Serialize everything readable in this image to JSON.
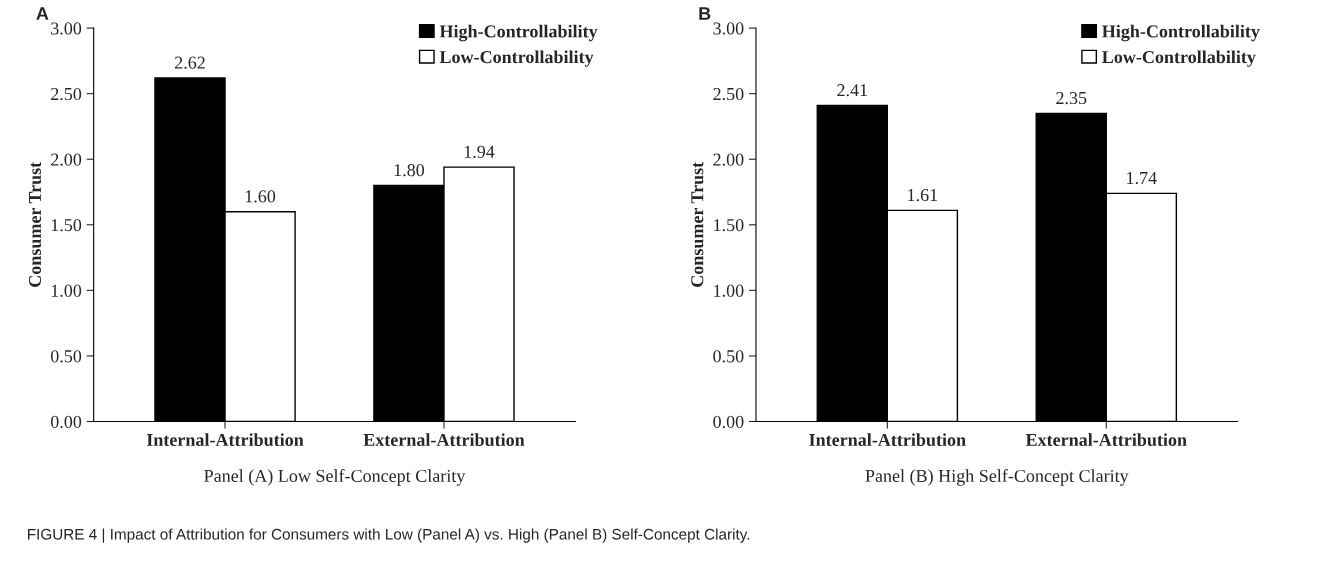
{
  "chart_data": [
    {
      "type": "bar",
      "title": "A",
      "xlabel": "Panel (A) Low Self-Concept Clarity",
      "ylabel": "Consumer Trust",
      "categories": [
        "Internal-Attribution",
        "External-Attribution"
      ],
      "series": [
        {
          "name": "High-Controllability",
          "color": "#000000",
          "values": [
            2.62,
            1.8
          ],
          "value_labels": [
            "2.62",
            "1.80"
          ]
        },
        {
          "name": "Low-Controllability",
          "color": "#ffffff",
          "values": [
            1.6,
            1.94
          ],
          "value_labels": [
            "1.60",
            "1.94"
          ]
        }
      ],
      "ylim": [
        0,
        3
      ],
      "yticks": [
        {
          "value": 0,
          "label": "0.00"
        },
        {
          "value": 0.5,
          "label": "0.50"
        },
        {
          "value": 1,
          "label": "1.00"
        },
        {
          "value": 1.5,
          "label": "1.50"
        },
        {
          "value": 2,
          "label": "2.00"
        },
        {
          "value": 2.5,
          "label": "2.50"
        },
        {
          "value": 3,
          "label": "3.00"
        }
      ],
      "legend": "top right",
      "grid": false,
      "annotations": [
        "FIGURE 4 | Impact of Attribution for Consumers with Low (Panel A) vs. High (Panel B) Self-Concept Clarity."
      ]
    },
    {
      "type": "bar",
      "title": "B",
      "xlabel": "Panel (B) High Self-Concept Clarity",
      "ylabel": "Consumer Trust",
      "categories": [
        "Internal-Attribution",
        "External-Attribution"
      ],
      "series": [
        {
          "name": "High-Controllability",
          "color": "#000000",
          "values": [
            2.41,
            2.35
          ],
          "value_labels": [
            "2.41",
            "2.35"
          ]
        },
        {
          "name": "Low-Controllability",
          "color": "#ffffff",
          "values": [
            1.61,
            1.74
          ],
          "value_labels": [
            "1.61",
            "1.74"
          ]
        }
      ],
      "ylim": [
        0,
        3
      ],
      "yticks": [
        {
          "value": 0,
          "label": "0.00"
        },
        {
          "value": 0.5,
          "label": "0.50"
        },
        {
          "value": 1,
          "label": "1.00"
        },
        {
          "value": 1.5,
          "label": "1.50"
        },
        {
          "value": 2,
          "label": "2.00"
        },
        {
          "value": 2.5,
          "label": "2.50"
        },
        {
          "value": 3,
          "label": "3.00"
        }
      ],
      "legend": "top right",
      "grid": false
    }
  ]
}
